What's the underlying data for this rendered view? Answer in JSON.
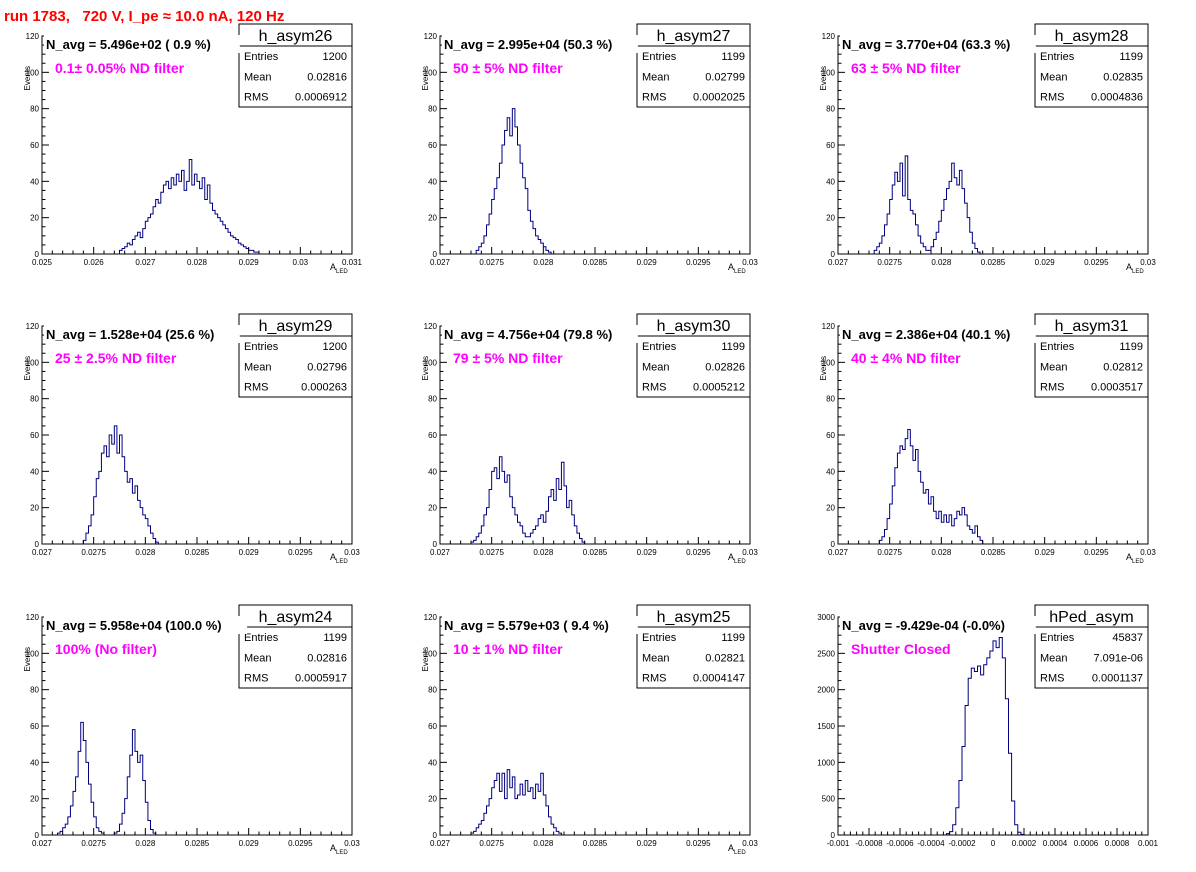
{
  "page": {
    "title": "run 1783,   720 V, I_pe ≈ 10.0 nA, 120 Hz",
    "colors": {
      "title": "#ff0000",
      "histogram": "#000080",
      "annotation": "#ff00ff",
      "frame": "#000000"
    }
  },
  "chart_data": [
    {
      "type": "histogram",
      "name": "h_asym26",
      "navg_label": "N_avg = 5.496e+02 ( 0.9 %)",
      "filter_label": "0.1± 0.05% ND filter",
      "stats": {
        "entries_label": "Entries",
        "entries": "1200",
        "mean_label": "Mean",
        "mean": "0.02816",
        "rms_label": "RMS",
        "rms": "0.0006912"
      },
      "xlabel": "A",
      "xlabel_sub": "LED",
      "ylabel": "Events",
      "xlim": [
        0.025,
        0.031
      ],
      "ylim": [
        0,
        120
      ],
      "xticks": [
        0.025,
        0.026,
        0.027,
        0.028,
        0.029,
        0.03,
        0.031
      ],
      "xtick_labels": [
        "0.025",
        "0.026",
        "0.027",
        "0.028",
        "0.029",
        "0.03",
        "0.031"
      ],
      "yticks": [
        0,
        20,
        40,
        60,
        80,
        100,
        120
      ],
      "ytick_labels": [
        "0",
        "20",
        "40",
        "60",
        "80",
        "100",
        "120"
      ],
      "bin_start": 0.0265,
      "bin_width": 5e-05,
      "values": [
        2,
        3,
        4,
        6,
        5,
        8,
        10,
        12,
        9,
        14,
        18,
        20,
        22,
        26,
        30,
        28,
        34,
        38,
        40,
        36,
        42,
        38,
        44,
        40,
        46,
        35,
        40,
        52,
        38,
        44,
        40,
        36,
        42,
        30,
        38,
        28,
        24,
        22,
        20,
        18,
        16,
        14,
        12,
        10,
        9,
        8,
        6,
        5,
        4,
        3,
        2,
        2,
        1,
        1
      ]
    },
    {
      "type": "histogram",
      "name": "h_asym27",
      "navg_label": "N_avg = 2.995e+04 (50.3 %)",
      "filter_label": "50 ± 5% ND filter",
      "stats": {
        "entries_label": "Entries",
        "entries": "1199",
        "mean_label": "Mean",
        "mean": "0.02799",
        "rms_label": "RMS",
        "rms": "0.0002025"
      },
      "xlabel": "A",
      "xlabel_sub": "LED",
      "ylabel": "Events",
      "xlim": [
        0.027,
        0.03
      ],
      "ylim": [
        0,
        120
      ],
      "xticks": [
        0.027,
        0.0275,
        0.028,
        0.0285,
        0.029,
        0.0295,
        0.03
      ],
      "xtick_labels": [
        "0.027",
        "0.0275",
        "0.028",
        "0.0285",
        "0.029",
        "0.0295",
        "0.03"
      ],
      "yticks": [
        0,
        20,
        40,
        60,
        80,
        100,
        120
      ],
      "ytick_labels": [
        "0",
        "20",
        "40",
        "60",
        "80",
        "100",
        "120"
      ],
      "bin_start": 0.02735,
      "bin_width": 2.5e-05,
      "values": [
        2,
        4,
        6,
        10,
        16,
        22,
        30,
        36,
        42,
        50,
        60,
        68,
        75,
        65,
        80,
        70,
        60,
        50,
        42,
        36,
        24,
        18,
        14,
        10,
        8,
        6,
        4,
        2,
        1
      ]
    },
    {
      "type": "histogram",
      "name": "h_asym28",
      "navg_label": "N_avg = 3.770e+04 (63.3 %)",
      "filter_label": "63 ± 5% ND filter",
      "stats": {
        "entries_label": "Entries",
        "entries": "1199",
        "mean_label": "Mean",
        "mean": "0.02835",
        "rms_label": "RMS",
        "rms": "0.0004836"
      },
      "xlabel": "A",
      "xlabel_sub": "LED",
      "ylabel": "Events",
      "xlim": [
        0.027,
        0.03
      ],
      "ylim": [
        0,
        120
      ],
      "xticks": [
        0.027,
        0.0275,
        0.028,
        0.0285,
        0.029,
        0.0295,
        0.03
      ],
      "xtick_labels": [
        "0.027",
        "0.0275",
        "0.028",
        "0.0285",
        "0.029",
        "0.0295",
        "0.03"
      ],
      "yticks": [
        0,
        20,
        40,
        60,
        80,
        100,
        120
      ],
      "ytick_labels": [
        "0",
        "20",
        "40",
        "60",
        "80",
        "100",
        "120"
      ],
      "bin_start": 0.02735,
      "bin_width": 2.5e-05,
      "values": [
        2,
        4,
        6,
        10,
        16,
        22,
        30,
        38,
        45,
        40,
        50,
        32,
        54,
        30,
        24,
        22,
        16,
        10,
        6,
        4,
        2,
        2,
        4,
        8,
        12,
        18,
        24,
        30,
        36,
        40,
        50,
        42,
        38,
        46,
        36,
        28,
        20,
        12,
        6,
        3,
        1
      ]
    },
    {
      "type": "histogram",
      "name": "h_asym29",
      "navg_label": "N_avg = 1.528e+04 (25.6 %)",
      "filter_label": "25 ± 2.5% ND filter",
      "stats": {
        "entries_label": "Entries",
        "entries": "1200",
        "mean_label": "Mean",
        "mean": "0.02796",
        "rms_label": "RMS",
        "rms": "0.000263"
      },
      "xlabel": "A",
      "xlabel_sub": "LED",
      "ylabel": "Events",
      "xlim": [
        0.027,
        0.03
      ],
      "ylim": [
        0,
        120
      ],
      "xticks": [
        0.027,
        0.0275,
        0.028,
        0.0285,
        0.029,
        0.0295,
        0.03
      ],
      "xtick_labels": [
        "0.027",
        "0.0275",
        "0.028",
        "0.0285",
        "0.029",
        "0.0295",
        "0.03"
      ],
      "yticks": [
        0,
        20,
        40,
        60,
        80,
        100,
        120
      ],
      "ytick_labels": [
        "0",
        "20",
        "40",
        "60",
        "80",
        "100",
        "120"
      ],
      "bin_start": 0.0274,
      "bin_width": 2.5e-05,
      "values": [
        2,
        6,
        10,
        16,
        26,
        36,
        40,
        50,
        54,
        48,
        60,
        55,
        65,
        50,
        60,
        48,
        40,
        34,
        36,
        28,
        32,
        24,
        20,
        16,
        14,
        10,
        6,
        3,
        1
      ]
    },
    {
      "type": "histogram",
      "name": "h_asym30",
      "navg_label": "N_avg = 4.756e+04 (79.8 %)",
      "filter_label": "79 ± 5% ND filter",
      "stats": {
        "entries_label": "Entries",
        "entries": "1199",
        "mean_label": "Mean",
        "mean": "0.02826",
        "rms_label": "RMS",
        "rms": "0.0005212"
      },
      "xlabel": "A",
      "xlabel_sub": "LED",
      "ylabel": "Events",
      "xlim": [
        0.027,
        0.03
      ],
      "ylim": [
        0,
        120
      ],
      "xticks": [
        0.027,
        0.0275,
        0.028,
        0.0285,
        0.029,
        0.0295,
        0.03
      ],
      "xtick_labels": [
        "0.027",
        "0.0275",
        "0.028",
        "0.0285",
        "0.029",
        "0.0295",
        "0.03"
      ],
      "yticks": [
        0,
        20,
        40,
        60,
        80,
        100,
        120
      ],
      "ytick_labels": [
        "0",
        "20",
        "40",
        "60",
        "80",
        "100",
        "120"
      ],
      "bin_start": 0.0273,
      "bin_width": 2.5e-05,
      "values": [
        1,
        2,
        4,
        6,
        10,
        16,
        20,
        30,
        40,
        42,
        36,
        48,
        40,
        34,
        38,
        26,
        20,
        16,
        12,
        10,
        6,
        4,
        4,
        6,
        8,
        10,
        14,
        16,
        12,
        18,
        26,
        30,
        24,
        36,
        30,
        45,
        32,
        20,
        24,
        16,
        10,
        6,
        3,
        1
      ]
    },
    {
      "type": "histogram",
      "name": "h_asym31",
      "navg_label": "N_avg = 2.386e+04 (40.1 %)",
      "filter_label": "40 ± 4% ND filter",
      "stats": {
        "entries_label": "Entries",
        "entries": "1199",
        "mean_label": "Mean",
        "mean": "0.02812",
        "rms_label": "RMS",
        "rms": "0.0003517"
      },
      "xlabel": "A",
      "xlabel_sub": "LED",
      "ylabel": "Events",
      "xlim": [
        0.027,
        0.03
      ],
      "ylim": [
        0,
        120
      ],
      "xticks": [
        0.027,
        0.0275,
        0.028,
        0.0285,
        0.029,
        0.0295,
        0.03
      ],
      "xtick_labels": [
        "0.027",
        "0.0275",
        "0.028",
        "0.0285",
        "0.029",
        "0.0295",
        "0.03"
      ],
      "yticks": [
        0,
        20,
        40,
        60,
        80,
        100,
        120
      ],
      "ytick_labels": [
        "0",
        "20",
        "40",
        "60",
        "80",
        "100",
        "120"
      ],
      "bin_start": 0.0274,
      "bin_width": 2.5e-05,
      "values": [
        2,
        4,
        8,
        14,
        22,
        32,
        42,
        50,
        54,
        52,
        58,
        63,
        54,
        46,
        52,
        40,
        34,
        28,
        30,
        22,
        26,
        18,
        14,
        18,
        12,
        16,
        12,
        16,
        10,
        14,
        18,
        16,
        20,
        16,
        10,
        8,
        6,
        10,
        4,
        2
      ]
    },
    {
      "type": "histogram",
      "name": "h_asym24",
      "navg_label": "N_avg = 5.958e+04 (100.0 %)",
      "filter_label": "100% (No filter)",
      "stats": {
        "entries_label": "Entries",
        "entries": "1199",
        "mean_label": "Mean",
        "mean": "0.02816",
        "rms_label": "RMS",
        "rms": "0.0005917"
      },
      "xlabel": "A",
      "xlabel_sub": "LED",
      "ylabel": "Events",
      "xlim": [
        0.027,
        0.03
      ],
      "ylim": [
        0,
        120
      ],
      "xticks": [
        0.027,
        0.0275,
        0.028,
        0.0285,
        0.029,
        0.0295,
        0.03
      ],
      "xtick_labels": [
        "0.027",
        "0.0275",
        "0.028",
        "0.0285",
        "0.029",
        "0.0295",
        "0.03"
      ],
      "yticks": [
        0,
        20,
        40,
        60,
        80,
        100,
        120
      ],
      "ytick_labels": [
        "0",
        "20",
        "40",
        "60",
        "80",
        "100",
        "120"
      ],
      "bin_start": 0.02715,
      "bin_width": 2.5e-05,
      "values": [
        1,
        2,
        4,
        6,
        10,
        16,
        24,
        32,
        46,
        62,
        52,
        40,
        28,
        18,
        10,
        4,
        2,
        1,
        0,
        0,
        0,
        0,
        1,
        2,
        6,
        12,
        20,
        32,
        44,
        58,
        46,
        40,
        44,
        30,
        18,
        8,
        3,
        1
      ]
    },
    {
      "type": "histogram",
      "name": "h_asym25",
      "navg_label": "N_avg = 5.579e+03 ( 9.4 %)",
      "filter_label": "10 ± 1% ND filter",
      "stats": {
        "entries_label": "Entries",
        "entries": "1199",
        "mean_label": "Mean",
        "mean": "0.02821",
        "rms_label": "RMS",
        "rms": "0.0004147"
      },
      "xlabel": "A",
      "xlabel_sub": "LED",
      "ylabel": "Events",
      "xlim": [
        0.027,
        0.03
      ],
      "ylim": [
        0,
        120
      ],
      "xticks": [
        0.027,
        0.0275,
        0.028,
        0.0285,
        0.029,
        0.0295,
        0.03
      ],
      "xtick_labels": [
        "0.027",
        "0.0275",
        "0.028",
        "0.0285",
        "0.029",
        "0.0295",
        "0.03"
      ],
      "yticks": [
        0,
        20,
        40,
        60,
        80,
        100,
        120
      ],
      "ytick_labels": [
        "0",
        "20",
        "40",
        "60",
        "80",
        "100",
        "120"
      ],
      "bin_start": 0.0273,
      "bin_width": 2.5e-05,
      "values": [
        1,
        2,
        4,
        6,
        8,
        12,
        16,
        20,
        26,
        30,
        34,
        24,
        34,
        20,
        36,
        26,
        32,
        20,
        22,
        28,
        22,
        30,
        24,
        26,
        20,
        28,
        24,
        34,
        22,
        16,
        10,
        6,
        4,
        2,
        1
      ]
    },
    {
      "type": "histogram",
      "name": "hPed_asym",
      "navg_label": "N_avg = -9.429e-04 (-0.0%)",
      "filter_label": "Shutter Closed",
      "stats": {
        "entries_label": "Entries",
        "entries": "45837",
        "mean_label": "Mean",
        "mean": "7.091e-06",
        "rms_label": "RMS",
        "rms": "0.0001137"
      },
      "xlabel": "",
      "xlabel_sub": "",
      "ylabel": "",
      "xlim": [
        -0.001,
        0.001
      ],
      "ylim": [
        0,
        3200
      ],
      "xticks": [
        -0.001,
        -0.0008,
        -0.0006,
        -0.0004,
        -0.0002,
        0,
        0.0002,
        0.0004,
        0.0006,
        0.0008,
        0.001
      ],
      "xtick_labels": [
        "-0.001",
        "-0.0008",
        "-0.0006",
        "-0.0004",
        "-0.0002",
        "0",
        "0.0002",
        "0.0004",
        "0.0006",
        "0.0008",
        "0.001"
      ],
      "yticks": [
        0,
        500,
        1000,
        1500,
        2000,
        2500,
        3000
      ],
      "ytick_labels": [
        "0",
        "500",
        "1000",
        "1500",
        "2000",
        "2500",
        "3000"
      ],
      "bin_start": -0.0003,
      "bin_width": 2e-05,
      "values": [
        20,
        50,
        150,
        400,
        800,
        1300,
        1900,
        2300,
        2450,
        2400,
        2480,
        2350,
        2500,
        2600,
        2700,
        2850,
        2750,
        2900,
        2600,
        2000,
        1200,
        500,
        150,
        40,
        10
      ]
    }
  ]
}
